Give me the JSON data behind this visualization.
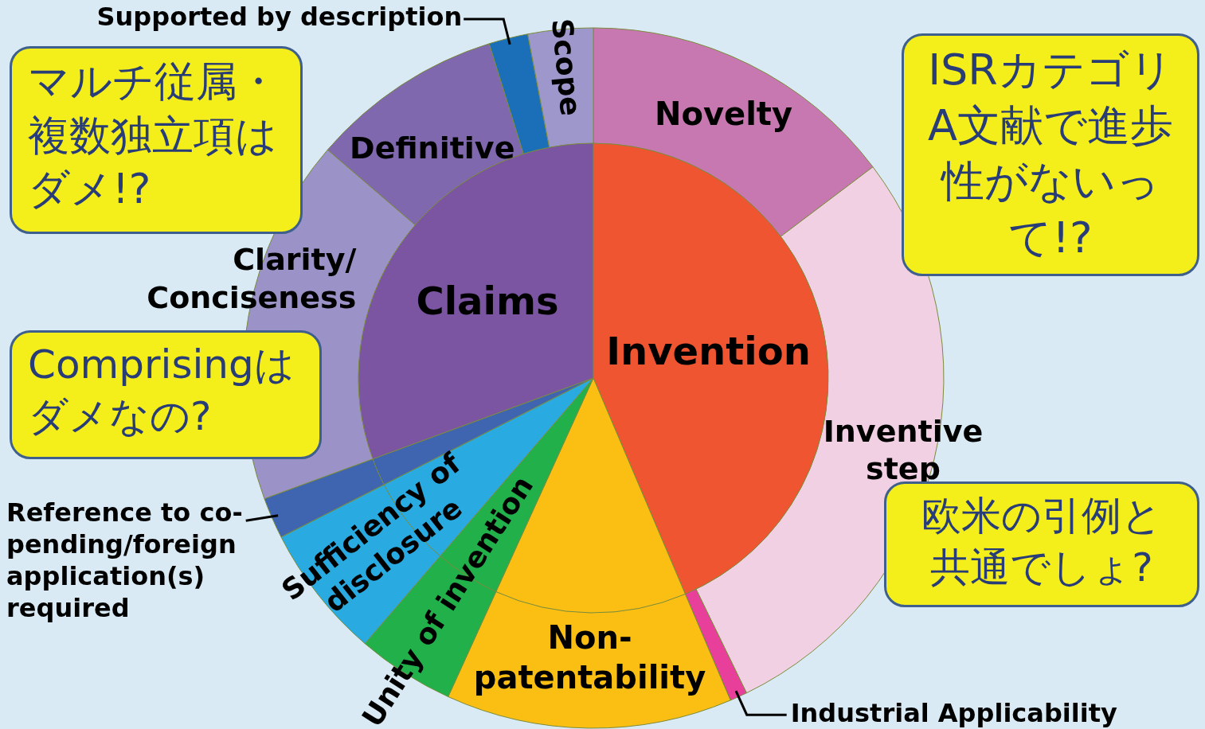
{
  "chart_data": [
    {
      "type": "pie",
      "categories": [
        "Invention",
        null,
        null,
        null,
        null,
        "Claims"
      ],
      "values": [
        43.6,
        13.2,
        4.5,
        6.2,
        1.9,
        30.6
      ],
      "colors": [
        "#f05532",
        "#fbbf14",
        "#22b04b",
        "#29abe2",
        "#3f64b0",
        "#7b55a2"
      ],
      "annotations": [
        "マルチ従属・複数独立項はダメ!?",
        "Comprisingはダメなの?",
        "ISRカテゴリA文献で進歩性がないって!?",
        "欧米の引例と共通でしょ?"
      ]
    },
    {
      "type": "donut",
      "categories": [
        "Novelty",
        "Inventive step",
        "Industrial Applicability",
        "Non-patentability",
        "Unity of invention",
        "Sufficiency of disclosure",
        "Reference to co-pending/foreign application(s) required",
        "Clarity/Conciseness",
        "Definitive",
        "Supported by description",
        "Scope"
      ],
      "values": [
        14.7,
        28.1,
        0.8,
        13.2,
        4.5,
        6.2,
        1.9,
        16.9,
        8.9,
        1.8,
        3.0
      ],
      "colors": [
        "#c878b0",
        "#f0d0e2",
        "#e8409a",
        "#fbbf14",
        "#22b04b",
        "#29abe2",
        "#3f64b0",
        "#9b93c8",
        "#7f68ad",
        "#1a6fb8",
        "#9e97cc"
      ]
    }
  ]
}
